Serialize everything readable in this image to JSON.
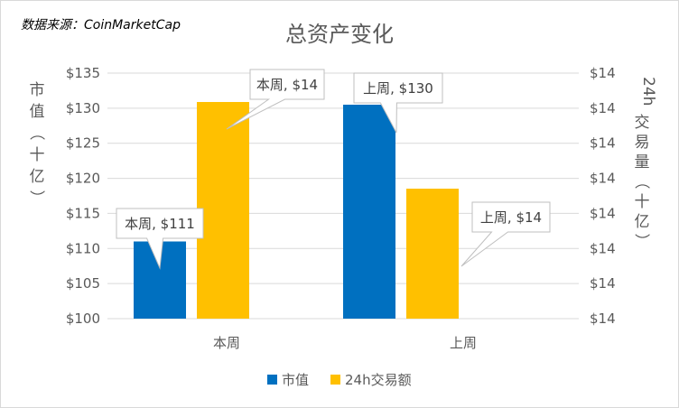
{
  "source_note": "数据来源：CoinMarketCap",
  "chart_data": {
    "type": "bar",
    "title": "总资产变化",
    "categories": [
      "本周",
      "上周"
    ],
    "series": [
      {
        "name": "市值",
        "values": [
          111,
          130.5
        ],
        "axis": "left",
        "color": "#0070c0",
        "labels": [
          "本周, $111",
          "上周, $130"
        ]
      },
      {
        "name": "24h交易额",
        "values": [
          14.4,
          14.1
        ],
        "axis": "right",
        "color": "#ffc000",
        "labels": [
          "本周, $14",
          "上周, $14"
        ]
      }
    ],
    "y_left": {
      "label": "市值（十亿）",
      "ylim": [
        100,
        135
      ],
      "ticks": [
        135,
        130,
        125,
        120,
        115,
        110,
        105,
        100
      ],
      "tick_labels": [
        "$135",
        "$130",
        "$125",
        "$120",
        "$115",
        "$110",
        "$105",
        "$100"
      ]
    },
    "y_right": {
      "label": "24h交易量（十亿）",
      "ylim": [
        13.65,
        14.5
      ],
      "tick_labels": [
        "$14",
        "$14",
        "$14",
        "$14",
        "$14",
        "$14",
        "$14",
        "$14"
      ]
    },
    "grid": true,
    "legend": "bottom"
  }
}
